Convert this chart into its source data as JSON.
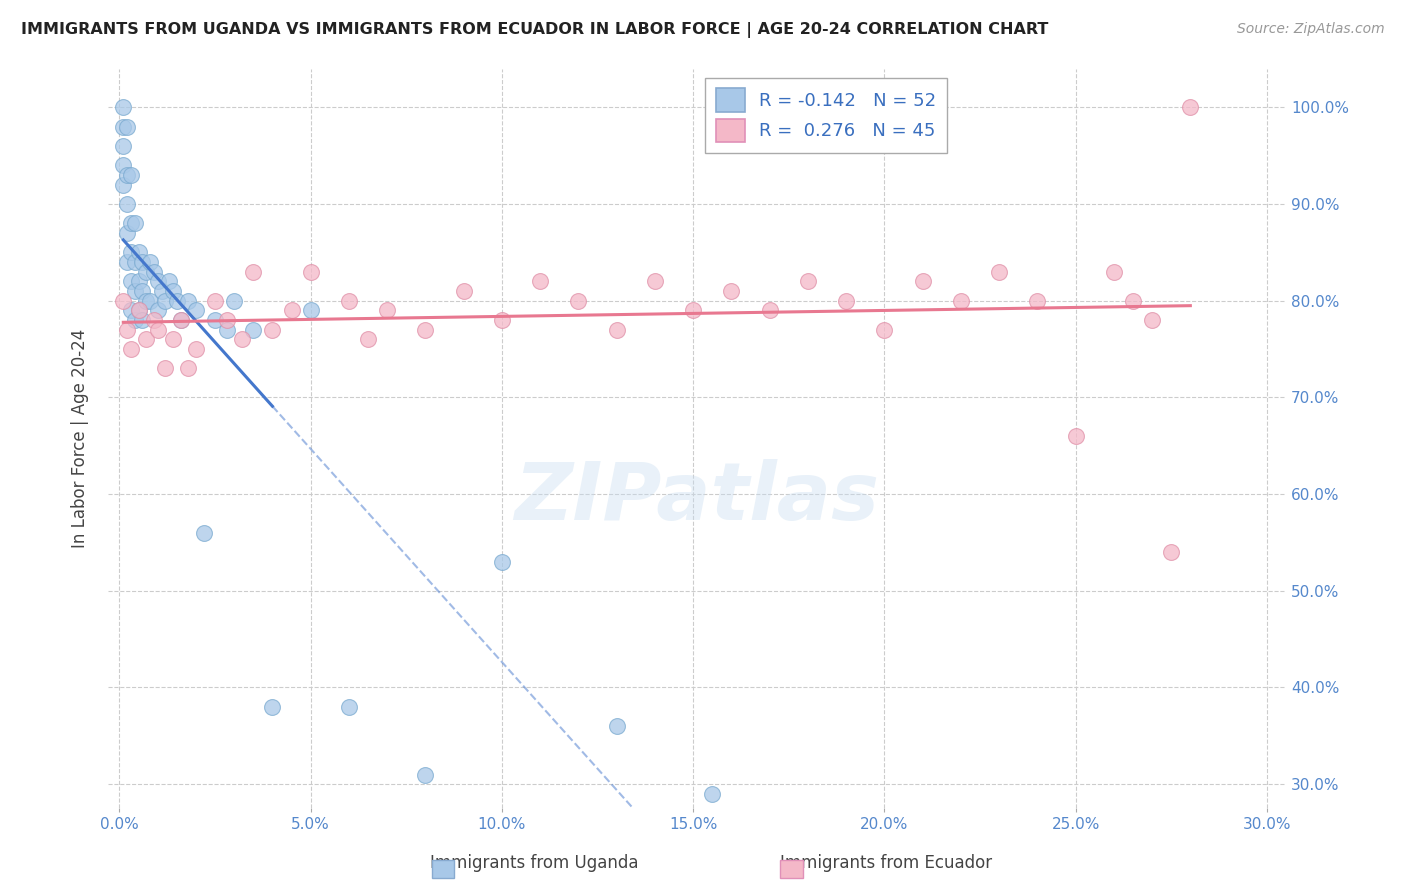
{
  "title": "IMMIGRANTS FROM UGANDA VS IMMIGRANTS FROM ECUADOR IN LABOR FORCE | AGE 20-24 CORRELATION CHART",
  "source": "Source: ZipAtlas.com",
  "ylabel": "In Labor Force | Age 20-24",
  "xlim": [
    -0.003,
    0.305
  ],
  "ylim": [
    0.275,
    1.04
  ],
  "yticks": [
    0.3,
    0.4,
    0.5,
    0.6,
    0.7,
    0.8,
    0.9,
    1.0
  ],
  "ytick_labels": [
    "30.0%",
    "40.0%",
    "50.0%",
    "60.0%",
    "70.0%",
    "80.0%",
    "90.0%",
    "100.0%"
  ],
  "xtick_labels": [
    "0.0%",
    "5.0%",
    "10.0%",
    "15.0%",
    "20.0%",
    "25.0%",
    "30.0%"
  ],
  "xticks": [
    0.0,
    0.05,
    0.1,
    0.15,
    0.2,
    0.25,
    0.3
  ],
  "uganda_color": "#a8c8e8",
  "ecuador_color": "#f4b8c8",
  "regression_uganda_color": "#4477cc",
  "regression_ecuador_color": "#e87890",
  "R_uganda": -0.142,
  "N_uganda": 52,
  "R_ecuador": 0.276,
  "N_ecuador": 45,
  "watermark": "ZIPatlas",
  "uganda_x": [
    0.001,
    0.001,
    0.001,
    0.001,
    0.001,
    0.002,
    0.002,
    0.002,
    0.002,
    0.002,
    0.003,
    0.003,
    0.003,
    0.003,
    0.003,
    0.004,
    0.004,
    0.004,
    0.004,
    0.005,
    0.005,
    0.005,
    0.006,
    0.006,
    0.006,
    0.007,
    0.007,
    0.008,
    0.008,
    0.009,
    0.01,
    0.01,
    0.011,
    0.012,
    0.013,
    0.014,
    0.015,
    0.016,
    0.018,
    0.02,
    0.022,
    0.025,
    0.028,
    0.03,
    0.035,
    0.04,
    0.05,
    0.06,
    0.08,
    0.1,
    0.13,
    0.155
  ],
  "uganda_y": [
    1.0,
    0.98,
    0.96,
    0.94,
    0.92,
    0.98,
    0.93,
    0.9,
    0.87,
    0.84,
    0.93,
    0.88,
    0.85,
    0.82,
    0.79,
    0.88,
    0.84,
    0.81,
    0.78,
    0.85,
    0.82,
    0.79,
    0.84,
    0.81,
    0.78,
    0.83,
    0.8,
    0.84,
    0.8,
    0.83,
    0.82,
    0.79,
    0.81,
    0.8,
    0.82,
    0.81,
    0.8,
    0.78,
    0.8,
    0.79,
    0.56,
    0.78,
    0.77,
    0.8,
    0.77,
    0.38,
    0.79,
    0.38,
    0.31,
    0.53,
    0.36,
    0.29
  ],
  "ecuador_x": [
    0.001,
    0.002,
    0.003,
    0.005,
    0.007,
    0.009,
    0.01,
    0.012,
    0.014,
    0.016,
    0.018,
    0.02,
    0.025,
    0.028,
    0.032,
    0.035,
    0.04,
    0.045,
    0.05,
    0.06,
    0.065,
    0.07,
    0.08,
    0.09,
    0.1,
    0.11,
    0.12,
    0.13,
    0.14,
    0.15,
    0.16,
    0.17,
    0.18,
    0.19,
    0.2,
    0.21,
    0.22,
    0.23,
    0.24,
    0.25,
    0.26,
    0.265,
    0.27,
    0.275,
    0.28
  ],
  "ecuador_y": [
    0.8,
    0.77,
    0.75,
    0.79,
    0.76,
    0.78,
    0.77,
    0.73,
    0.76,
    0.78,
    0.73,
    0.75,
    0.8,
    0.78,
    0.76,
    0.83,
    0.77,
    0.79,
    0.83,
    0.8,
    0.76,
    0.79,
    0.77,
    0.81,
    0.78,
    0.82,
    0.8,
    0.77,
    0.82,
    0.79,
    0.81,
    0.79,
    0.82,
    0.8,
    0.77,
    0.82,
    0.8,
    0.83,
    0.8,
    0.66,
    0.83,
    0.8,
    0.78,
    0.54,
    1.0
  ]
}
